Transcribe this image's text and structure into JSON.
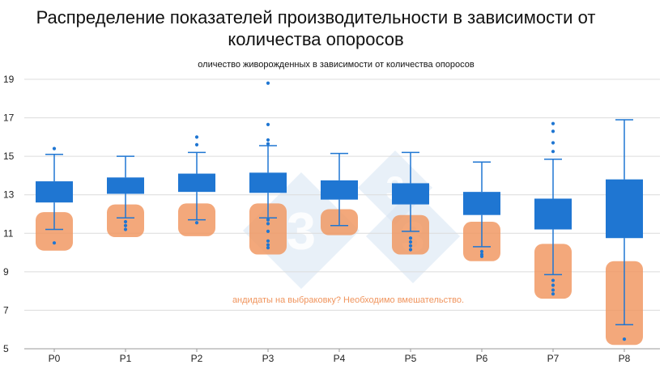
{
  "chart_data": {
    "type": "box",
    "title": "Распределение показателей производительности в зависимости от количества опоросов",
    "subtitle": "оличество живорожденных в зависимости от количества опоросов",
    "annotation": "андидаты на выбраковку? Необходимо вмешательство.",
    "ylim": [
      5,
      19
    ],
    "yticks": [
      5,
      7,
      9,
      11,
      13,
      15,
      17,
      19
    ],
    "grid": true,
    "categories": [
      "P0",
      "P1",
      "P2",
      "P3",
      "P4",
      "P5",
      "P6",
      "P7",
      "P8"
    ],
    "boxes": [
      {
        "whisker_low": 11.2,
        "q1": 12.6,
        "q3": 13.7,
        "whisker_high": 15.1,
        "outliers": [
          15.4,
          10.5
        ]
      },
      {
        "whisker_low": 11.8,
        "q1": 13.05,
        "q3": 13.9,
        "whisker_high": 15.0,
        "outliers": [
          11.6,
          11.4,
          11.2
        ]
      },
      {
        "whisker_low": 11.7,
        "q1": 13.15,
        "q3": 14.1,
        "whisker_high": 15.2,
        "outliers": [
          16.0,
          15.6,
          11.55
        ]
      },
      {
        "whisker_low": 11.8,
        "q1": 13.1,
        "q3": 14.15,
        "whisker_high": 15.55,
        "outliers": [
          18.8,
          16.65,
          15.85,
          15.65,
          11.7,
          11.5,
          11.1,
          10.6,
          10.4,
          10.25
        ]
      },
      {
        "whisker_low": 11.4,
        "q1": 12.75,
        "q3": 13.75,
        "whisker_high": 15.15,
        "outliers": []
      },
      {
        "whisker_low": 11.1,
        "q1": 12.5,
        "q3": 13.6,
        "whisker_high": 15.2,
        "outliers": [
          10.75,
          10.55,
          10.35,
          10.15
        ]
      },
      {
        "whisker_low": 10.3,
        "q1": 11.95,
        "q3": 13.15,
        "whisker_high": 14.7,
        "outliers": [
          10.05,
          9.9,
          9.8
        ]
      },
      {
        "whisker_low": 8.85,
        "q1": 11.2,
        "q3": 12.8,
        "whisker_high": 14.85,
        "outliers": [
          16.7,
          16.3,
          15.7,
          15.25,
          8.55,
          8.3,
          8.05,
          7.85
        ]
      },
      {
        "whisker_low": 6.25,
        "q1": 10.75,
        "q3": 13.8,
        "whisker_high": 16.9,
        "outliers": [
          5.5
        ]
      }
    ],
    "highlights": [
      {
        "category": "P0",
        "y_low": 10.1,
        "y_high": 12.1
      },
      {
        "category": "P1",
        "y_low": 10.8,
        "y_high": 12.5
      },
      {
        "category": "P2",
        "y_low": 10.85,
        "y_high": 12.55
      },
      {
        "category": "P3",
        "y_low": 9.9,
        "y_high": 12.55
      },
      {
        "category": "P4",
        "y_low": 10.9,
        "y_high": 12.25
      },
      {
        "category": "P5",
        "y_low": 9.9,
        "y_high": 11.95
      },
      {
        "category": "P6",
        "y_low": 9.55,
        "y_high": 11.6
      },
      {
        "category": "P7",
        "y_low": 7.6,
        "y_high": 10.45
      },
      {
        "category": "P8",
        "y_low": 5.2,
        "y_high": 9.55
      }
    ],
    "watermark_text": "3",
    "colors": {
      "box": "#1f76d2",
      "highlight": "#f0955e",
      "grid": "#dcdcdc",
      "annotation": "#f0955e",
      "watermark": "#d6e4f3"
    }
  }
}
